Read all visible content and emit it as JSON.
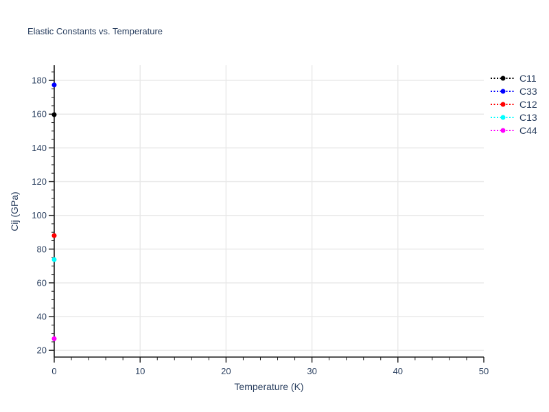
{
  "chart_data": {
    "type": "scatter",
    "title": "Elastic Constants vs. Temperature",
    "xlabel": "Temperature (K)",
    "ylabel": "Cij (GPa)",
    "xlim": [
      0,
      50
    ],
    "ylim": [
      16,
      189
    ],
    "x_ticks": [
      0,
      10,
      20,
      30,
      40,
      50
    ],
    "y_ticks": [
      20,
      40,
      60,
      80,
      100,
      120,
      140,
      160,
      180
    ],
    "x_minor_step": 2,
    "y_minor_step": 5,
    "grid": true,
    "legend_position": "top-right-outside",
    "font_color": "#2a3f5f",
    "grid_color": "#e8e8e8",
    "axis_color": "#1a1a1a",
    "series": [
      {
        "name": "C11",
        "color": "#000000",
        "line_style": "dotted",
        "marker": "circle",
        "x": [
          0
        ],
        "y": [
          159.7
        ]
      },
      {
        "name": "C33",
        "color": "#0000ff",
        "line_style": "dotted",
        "marker": "circle",
        "x": [
          0
        ],
        "y": [
          177.3
        ]
      },
      {
        "name": "C12",
        "color": "#ff0000",
        "line_style": "dotted",
        "marker": "circle",
        "x": [
          0
        ],
        "y": [
          88.0
        ]
      },
      {
        "name": "C13",
        "color": "#00ffff",
        "line_style": "dotted",
        "marker": "circle",
        "x": [
          0
        ],
        "y": [
          73.8
        ]
      },
      {
        "name": "C44",
        "color": "#ff00ff",
        "line_style": "dotted",
        "marker": "circle",
        "x": [
          0
        ],
        "y": [
          26.9
        ]
      }
    ]
  }
}
